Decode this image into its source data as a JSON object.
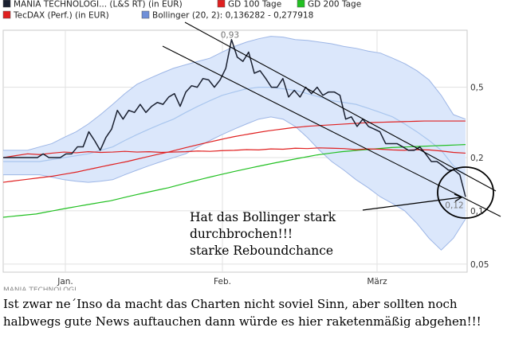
{
  "legend": [
    {
      "label": "MANIA TECHNOLOGI... (L&S RT) (in EUR)",
      "color": "#1a2030"
    },
    {
      "label": "GD 100 Tage",
      "color": "#e02020"
    },
    {
      "label": "GD 200 Tage",
      "color": "#22c022"
    },
    {
      "label": "TecDAX (Perf.) (in EUR)",
      "color": "#e02020"
    },
    {
      "label": "Bollinger (20, 2): 0,136282 - 0,277918",
      "color": "#6f8fd8"
    }
  ],
  "annotation": {
    "lines": [
      "Hat das Bollinger stark",
      "durchbrochen!!!",
      "starke Reboundchance"
    ]
  },
  "caption": {
    "lines": [
      "Ist zwar ne´Inso da macht das Charten nicht soviel Sinn, aber sollten noch",
      "halbwegs gute News auftauchen dann würde es hier raketenmäßig abgehen!!!"
    ],
    "cut_line": "MANIA TECHNOLOGI..."
  },
  "chart_data": {
    "type": "line",
    "y_scale": "log",
    "ylim": [
      0.045,
      1.05
    ],
    "x_tick_labels": [
      "Jan.",
      "Feb.",
      "März"
    ],
    "y_tick_labels": [
      "0,5",
      "0,2",
      "0,1",
      "0,05"
    ],
    "y_ticks": [
      0.5,
      0.2,
      0.1,
      0.05
    ],
    "max_label": "0,93",
    "max_value": 0.93,
    "min_label": "0,12",
    "min_value": 0.12,
    "series": [
      {
        "name": "MANIA TECHNOLOGI... (L&S RT) (in EUR)",
        "color": "#1a2030",
        "values": [
          0.2,
          0.2,
          0.2,
          0.2,
          0.2,
          0.2,
          0.2,
          0.21,
          0.2,
          0.2,
          0.2,
          0.21,
          0.21,
          0.23,
          0.23,
          0.28,
          0.25,
          0.22,
          0.26,
          0.29,
          0.37,
          0.33,
          0.37,
          0.36,
          0.4,
          0.36,
          0.39,
          0.41,
          0.4,
          0.44,
          0.46,
          0.39,
          0.47,
          0.51,
          0.5,
          0.56,
          0.55,
          0.5,
          0.55,
          0.64,
          0.93,
          0.74,
          0.7,
          0.79,
          0.6,
          0.62,
          0.56,
          0.5,
          0.5,
          0.56,
          0.44,
          0.48,
          0.44,
          0.5,
          0.46,
          0.5,
          0.45,
          0.47,
          0.47,
          0.45,
          0.33,
          0.34,
          0.3,
          0.33,
          0.3,
          0.29,
          0.28,
          0.24,
          0.24,
          0.24,
          0.23,
          0.22,
          0.22,
          0.23,
          0.21,
          0.19,
          0.19,
          0.18,
          0.17,
          0.17,
          0.16,
          0.12
        ]
      },
      {
        "name": "GD 100 Tage",
        "color": "#e02020",
        "values": [
          0.145,
          0.147,
          0.149,
          0.151,
          0.153,
          0.155,
          0.157,
          0.16,
          0.163,
          0.166,
          0.17,
          0.174,
          0.178,
          0.182,
          0.186,
          0.19,
          0.195,
          0.2,
          0.205,
          0.21,
          0.215,
          0.221,
          0.227,
          0.233,
          0.239,
          0.245,
          0.251,
          0.257,
          0.263,
          0.268,
          0.273,
          0.278,
          0.283,
          0.287,
          0.291,
          0.295,
          0.298,
          0.301,
          0.303,
          0.305,
          0.307,
          0.309,
          0.311,
          0.313,
          0.315,
          0.316,
          0.317,
          0.318,
          0.319,
          0.32,
          0.321,
          0.322,
          0.322,
          0.322,
          0.322,
          0.322,
          0.322
        ]
      },
      {
        "name": "GD 200 Tage",
        "color": "#22c022",
        "values": [
          0.092,
          0.093,
          0.094,
          0.095,
          0.096,
          0.098,
          0.1,
          0.102,
          0.104,
          0.106,
          0.108,
          0.11,
          0.112,
          0.114,
          0.117,
          0.12,
          0.123,
          0.126,
          0.129,
          0.132,
          0.135,
          0.139,
          0.143,
          0.147,
          0.151,
          0.155,
          0.159,
          0.163,
          0.167,
          0.171,
          0.175,
          0.179,
          0.183,
          0.187,
          0.191,
          0.195,
          0.199,
          0.203,
          0.207,
          0.21,
          0.213,
          0.216,
          0.218,
          0.22,
          0.222,
          0.224,
          0.226,
          0.228,
          0.229,
          0.23,
          0.231,
          0.232,
          0.233,
          0.234,
          0.235,
          0.236,
          0.237
        ]
      },
      {
        "name": "TecDAX (Perf.) (in EUR)",
        "color": "#e02020",
        "values": [
          0.2,
          0.205,
          0.21,
          0.208,
          0.212,
          0.215,
          0.213,
          0.216,
          0.214,
          0.215,
          0.217,
          0.215,
          0.216,
          0.214,
          0.215,
          0.216,
          0.218,
          0.217,
          0.219,
          0.22,
          0.222,
          0.221,
          0.224,
          0.223,
          0.226,
          0.225,
          0.227,
          0.226,
          0.225,
          0.222,
          0.224,
          0.223,
          0.221,
          0.22,
          0.222,
          0.221,
          0.218,
          0.214,
          0.212
        ]
      }
    ],
    "bollinger_upper": [
      0.22,
      0.22,
      0.22,
      0.23,
      0.24,
      0.26,
      0.28,
      0.31,
      0.35,
      0.4,
      0.46,
      0.52,
      0.56,
      0.6,
      0.64,
      0.67,
      0.7,
      0.73,
      0.79,
      0.85,
      0.9,
      0.94,
      0.97,
      0.96,
      0.93,
      0.92,
      0.9,
      0.88,
      0.85,
      0.83,
      0.8,
      0.78,
      0.73,
      0.68,
      0.62,
      0.55,
      0.45,
      0.35,
      0.33
    ],
    "bollinger_lower": [
      0.16,
      0.16,
      0.16,
      0.16,
      0.155,
      0.15,
      0.147,
      0.145,
      0.147,
      0.15,
      0.16,
      0.17,
      0.18,
      0.19,
      0.2,
      0.21,
      0.23,
      0.25,
      0.27,
      0.29,
      0.31,
      0.33,
      0.34,
      0.33,
      0.3,
      0.26,
      0.22,
      0.19,
      0.17,
      0.15,
      0.135,
      0.12,
      0.11,
      0.1,
      0.085,
      0.07,
      0.06,
      0.07,
      0.09
    ],
    "bollinger_middle": [
      0.19,
      0.19,
      0.19,
      0.19,
      0.195,
      0.2,
      0.205,
      0.21,
      0.22,
      0.23,
      0.25,
      0.27,
      0.29,
      0.31,
      0.33,
      0.36,
      0.39,
      0.42,
      0.45,
      0.47,
      0.49,
      0.5,
      0.5,
      0.49,
      0.48,
      0.46,
      0.44,
      0.42,
      0.41,
      0.4,
      0.38,
      0.36,
      0.34,
      0.31,
      0.28,
      0.25,
      0.22,
      0.18,
      0.16
    ]
  }
}
